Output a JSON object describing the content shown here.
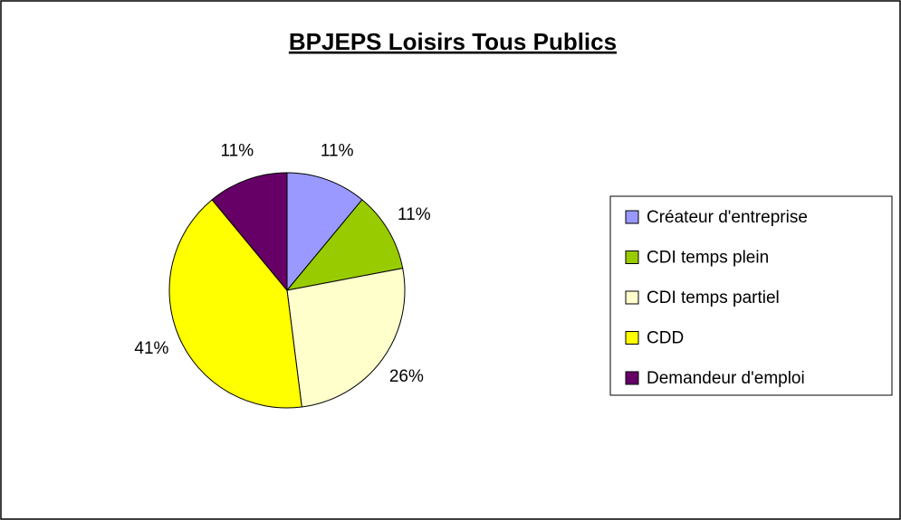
{
  "chart_data": {
    "type": "pie",
    "title": "BPJEPS Loisirs Tous Publics",
    "categories": [
      "Créateur d'entreprise",
      "CDI temps plein",
      "CDI temps partiel",
      "CDD",
      "Demandeur d'emploi"
    ],
    "values": [
      11,
      11,
      26,
      41,
      11
    ],
    "value_labels": [
      "11%",
      "11%",
      "26%",
      "41%",
      "11%"
    ],
    "colors": [
      "#9999ff",
      "#99cc00",
      "#ffffcc",
      "#ffff00",
      "#660066"
    ],
    "legend": "right"
  }
}
